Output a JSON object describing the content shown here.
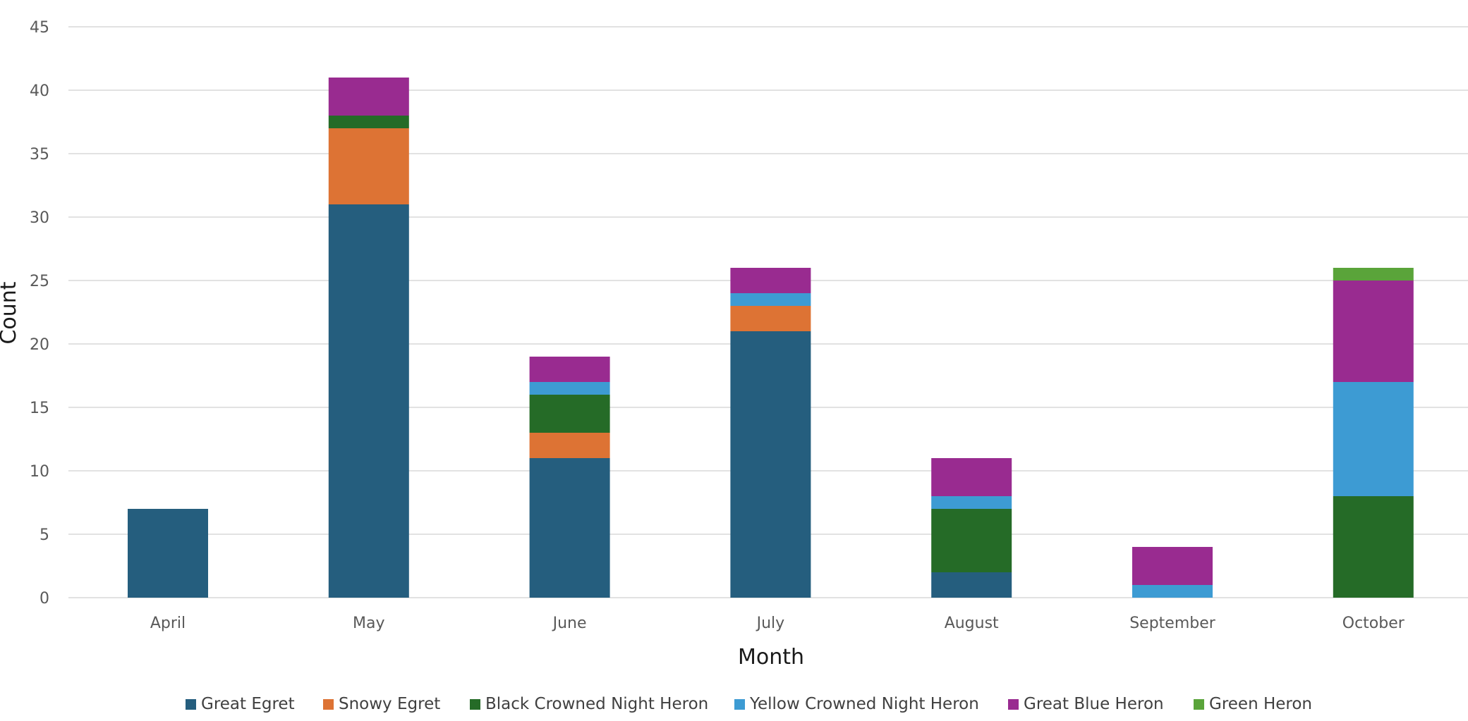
{
  "chart_data": {
    "type": "bar",
    "stacked": true,
    "title": "",
    "xlabel": "Month",
    "ylabel": "Count",
    "categories": [
      "April",
      "May",
      "June",
      "July",
      "August",
      "September",
      "October"
    ],
    "ylim": [
      0,
      45
    ],
    "yticks": [
      0,
      5,
      10,
      15,
      20,
      25,
      30,
      35,
      40,
      45
    ],
    "grid": true,
    "legend_position": "bottom",
    "series": [
      {
        "name": "Great Egret",
        "color": "#255E7E",
        "values": [
          7,
          31,
          11,
          21,
          2,
          0,
          0
        ]
      },
      {
        "name": "Snowy Egret",
        "color": "#DD7334",
        "values": [
          0,
          6,
          2,
          2,
          0,
          0,
          0
        ]
      },
      {
        "name": "Black Crowned Night Heron",
        "color": "#256B27",
        "values": [
          0,
          1,
          3,
          0,
          5,
          0,
          8
        ]
      },
      {
        "name": "Yellow Crowned Night Heron",
        "color": "#3D9BD3",
        "values": [
          0,
          0,
          1,
          1,
          1,
          1,
          9
        ]
      },
      {
        "name": "Great Blue Heron",
        "color": "#992B90",
        "values": [
          0,
          3,
          2,
          2,
          3,
          3,
          8
        ]
      },
      {
        "name": "Green Heron",
        "color": "#5AA43A",
        "values": [
          0,
          0,
          0,
          0,
          0,
          0,
          1
        ]
      }
    ]
  },
  "colors": {
    "gridline": "#D9D9D9",
    "tick_text": "#595959",
    "axis_title_text": "#1a1a1a",
    "legend_text": "#404040",
    "background": "#FFFFFF"
  }
}
